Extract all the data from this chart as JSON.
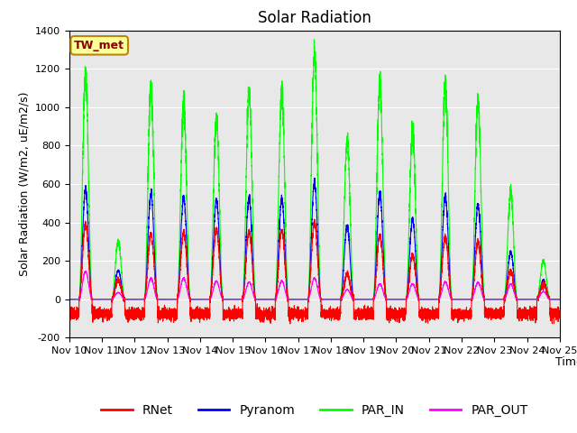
{
  "title": "Solar Radiation",
  "ylabel": "Solar Radiation (W/m2, uE/m2/s)",
  "xlabel": "Time",
  "station_label": "TW_met",
  "ylim": [
    -200,
    1400
  ],
  "yticks": [
    -200,
    0,
    200,
    400,
    600,
    800,
    1000,
    1200,
    1400
  ],
  "xlim_start": 0,
  "xlim_end": 15,
  "xtick_labels": [
    "Nov 10",
    "Nov 11",
    "Nov 12",
    "Nov 13",
    "Nov 14",
    "Nov 15",
    "Nov 16",
    "Nov 17",
    "Nov 18",
    "Nov 19",
    "Nov 20",
    "Nov 21",
    "Nov 22",
    "Nov 23",
    "Nov 24",
    "Nov 25"
  ],
  "colors": {
    "RNet": "#ff0000",
    "Pyranom": "#0000ff",
    "PAR_IN": "#00ff00",
    "PAR_OUT": "#ff00ff"
  },
  "plot_bg": "#e8e8e8",
  "fig_bg": "#ffffff",
  "title_fontsize": 12,
  "label_fontsize": 9,
  "tick_fontsize": 8,
  "legend_fontsize": 10,
  "linewidth": 0.8,
  "grid_color": "#ffffff",
  "n_days": 15,
  "pts_per_day": 480,
  "par_in_peaks": [
    1175,
    300,
    1100,
    1010,
    950,
    1080,
    1080,
    1275,
    820,
    1120,
    875,
    1110,
    1025,
    560,
    200
  ],
  "pyranom_peaks": [
    570,
    150,
    550,
    530,
    520,
    525,
    525,
    610,
    380,
    550,
    415,
    535,
    490,
    245,
    100
  ],
  "rnet_peaks": [
    390,
    100,
    340,
    350,
    365,
    355,
    360,
    400,
    130,
    335,
    230,
    325,
    300,
    145,
    80
  ],
  "par_out_peaks": [
    145,
    35,
    110,
    110,
    95,
    90,
    95,
    110,
    50,
    80,
    80,
    90,
    88,
    80,
    40
  ],
  "rnet_night": -75,
  "rnet_noise": 15
}
